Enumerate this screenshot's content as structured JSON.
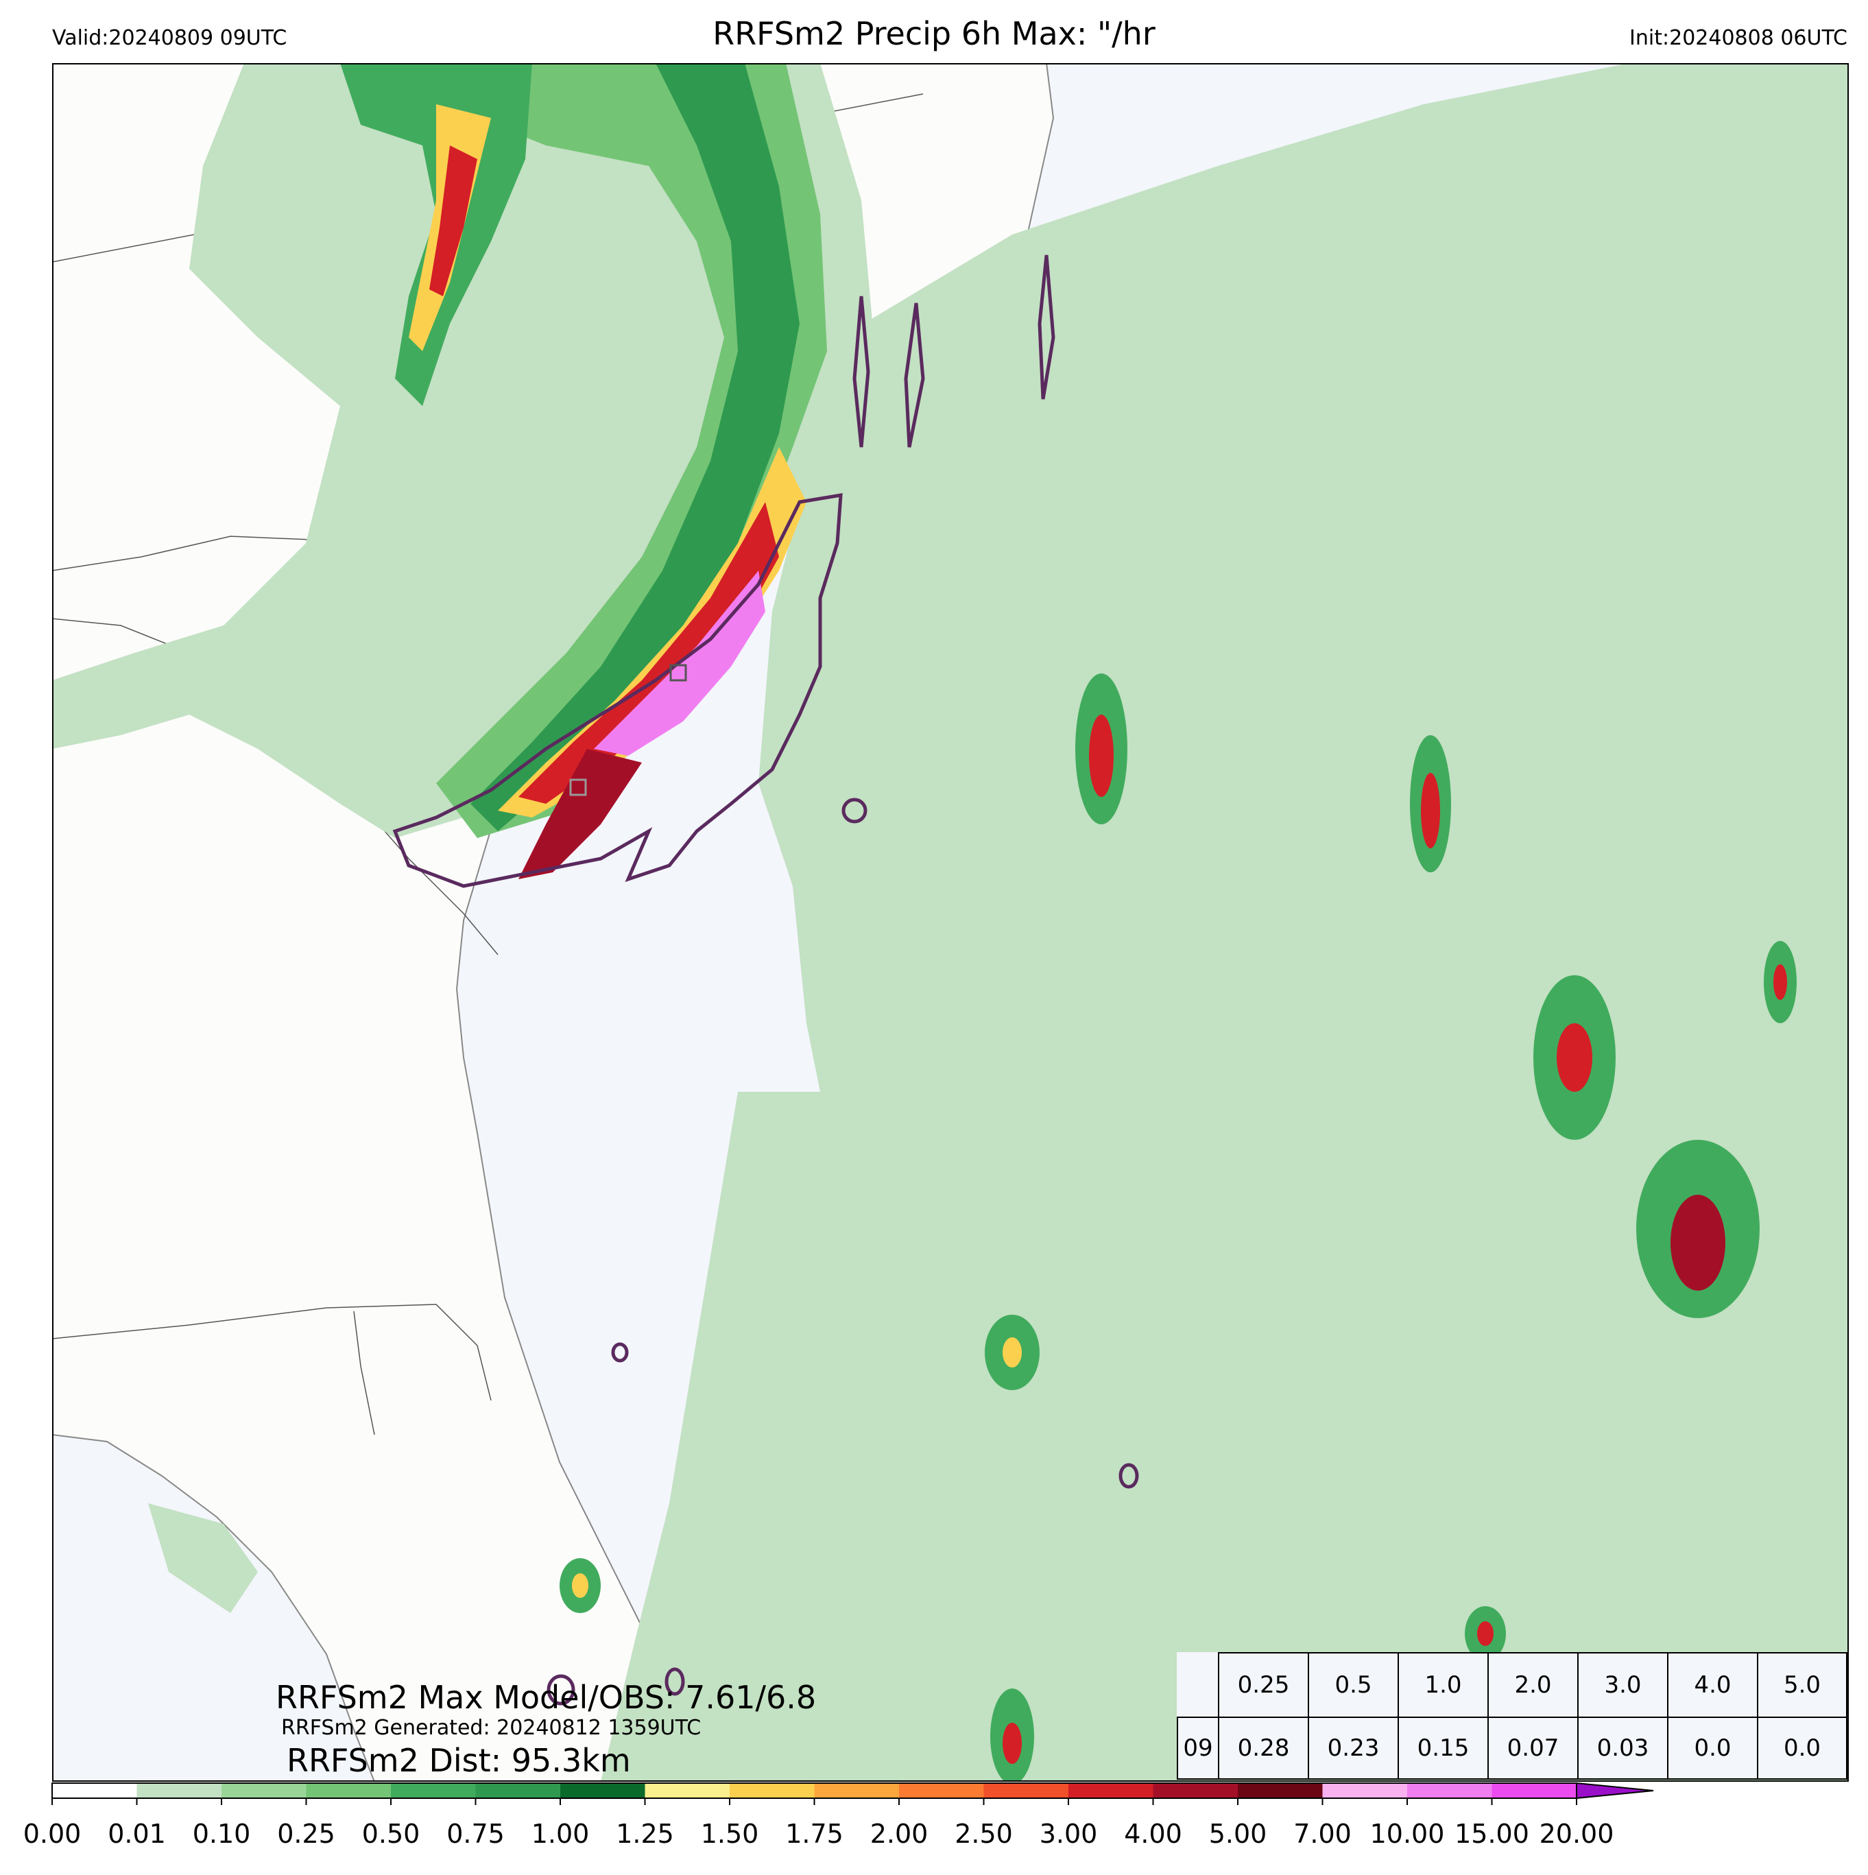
{
  "header": {
    "title": "RRFSm2 Precip 6h Max: \"/hr",
    "valid": "Valid:20240809 09UTC",
    "init": "Init:20240808 06UTC"
  },
  "stats": {
    "max_line": "RRFSm2 Max Model/OBS: 7.61/6.8",
    "generated_line": "RRFSm2 Generated: 20240812 1359UTC",
    "dist_line": "RRFSm2 Dist: 95.3km"
  },
  "table": {
    "thresholds": [
      "0.25",
      "0.5",
      "1.0",
      "2.0",
      "3.0",
      "4.0",
      "5.0"
    ],
    "row_label": "09",
    "values": [
      "0.28",
      "0.23",
      "0.15",
      "0.07",
      "0.03",
      "0.0",
      "0.0"
    ]
  },
  "colorbar": {
    "ticks": [
      "0.00",
      "0.01",
      "0.10",
      "0.25",
      "0.50",
      "0.75",
      "1.00",
      "1.25",
      "1.50",
      "1.75",
      "2.00",
      "2.50",
      "3.00",
      "4.00",
      "5.00",
      "7.00",
      "10.00",
      "15.00",
      "20.00"
    ],
    "colors": [
      "#ffffff",
      "#c3e1c3",
      "#99d597",
      "#74c476",
      "#41ab5d",
      "#2f9a4f",
      "#0a6a2b",
      "#fbf08e",
      "#fcd04f",
      "#fca73d",
      "#fb7b32",
      "#f24f2b",
      "#d41f26",
      "#a40f28",
      "#6b0715",
      "#f9b1f0",
      "#f17ef0",
      "#ec4bf0",
      "#de1ff0",
      "#9a10c8"
    ]
  },
  "map_colors": {
    "land": "#fcfcfa",
    "ocean": "#f3f6fb",
    "obs_contour": "#5a2a5e",
    "border": "#555555"
  }
}
